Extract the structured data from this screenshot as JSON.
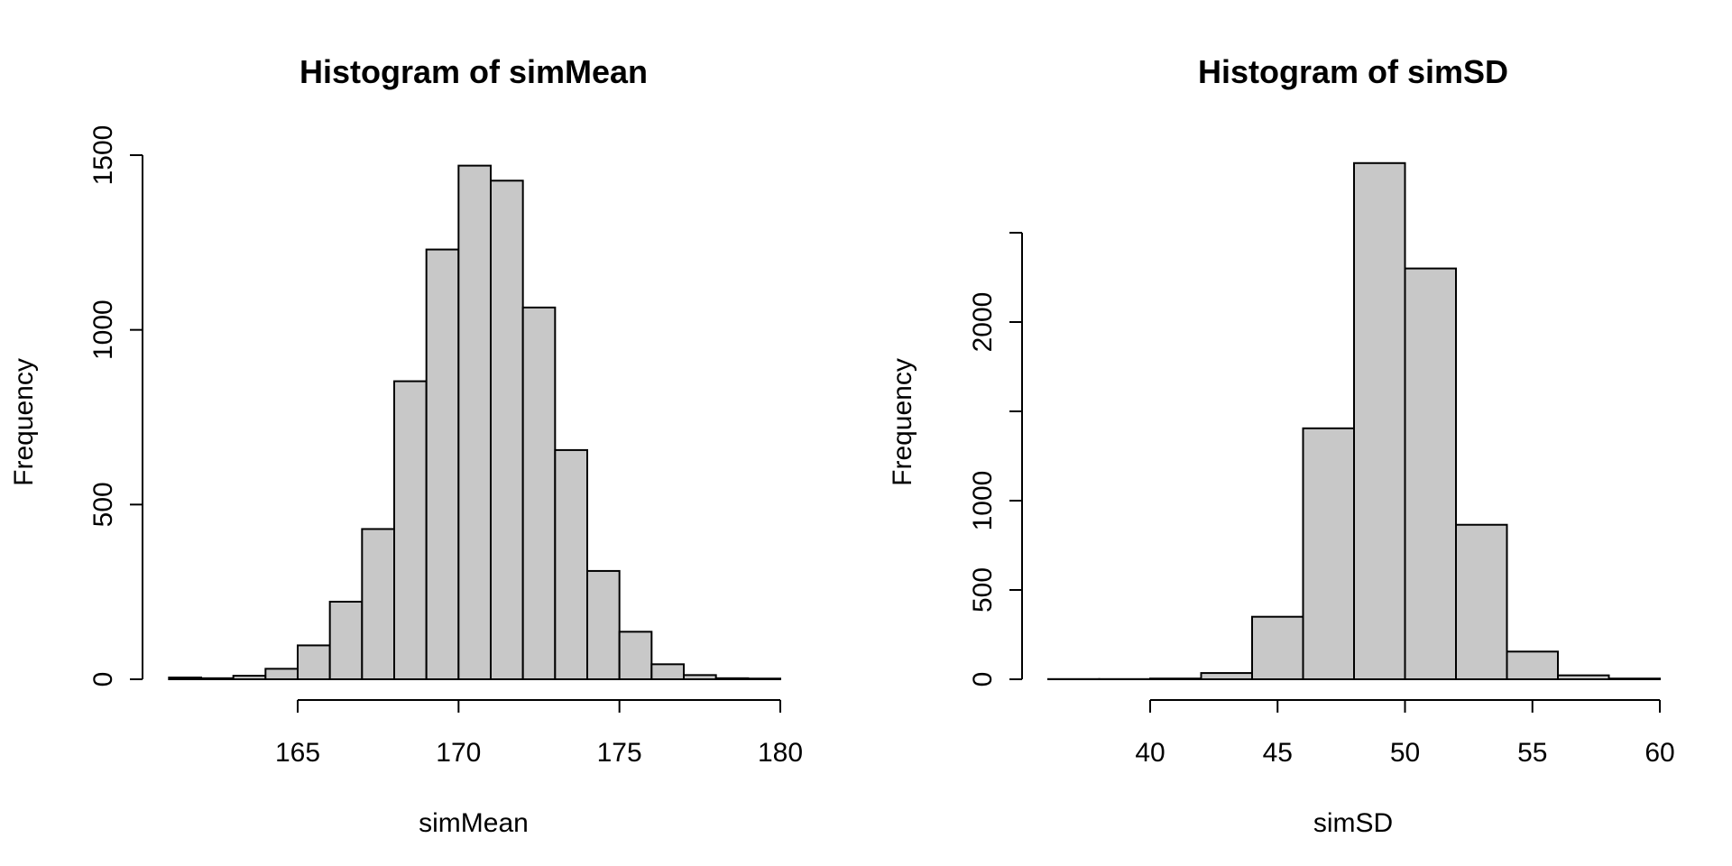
{
  "chart_data": [
    {
      "type": "bar",
      "title": "Histogram of simMean",
      "xlabel": "simMean",
      "ylabel": "Frequency",
      "bin_edges": [
        161,
        162,
        163,
        164,
        165,
        166,
        167,
        168,
        169,
        170,
        171,
        172,
        173,
        174,
        175,
        176,
        177,
        178,
        179,
        180
      ],
      "values": [
        5,
        3,
        10,
        30,
        97,
        222,
        430,
        853,
        1230,
        1470,
        1427,
        1064,
        656,
        310,
        136,
        43,
        12,
        3,
        2
      ],
      "xlim": [
        161,
        180
      ],
      "ylim": [
        0,
        1500
      ],
      "x_ticks": [
        165,
        170,
        175,
        180
      ],
      "y_ticks": [
        0,
        500,
        1000,
        1500
      ],
      "x_tick_labels": [
        "165",
        "170",
        "175",
        "180"
      ],
      "y_tick_labels": [
        "0",
        "500",
        "1000",
        "1500"
      ],
      "grid": false,
      "fill_color": "#c8c8c8"
    },
    {
      "type": "bar",
      "title": "Histogram of simSD",
      "xlabel": "simSD",
      "ylabel": "Frequency",
      "bin_edges": [
        36,
        38,
        40,
        42,
        44,
        46,
        48,
        50,
        52,
        54,
        56,
        58,
        60
      ],
      "values": [
        1,
        1,
        4,
        35,
        350,
        1405,
        2890,
        2300,
        865,
        155,
        22,
        4
      ],
      "xlim": [
        40,
        60
      ],
      "ylim": [
        0,
        2500
      ],
      "x_ticks": [
        40,
        45,
        50,
        55,
        60
      ],
      "y_ticks": [
        0,
        500,
        1000,
        1500,
        2000,
        2500
      ],
      "x_tick_labels": [
        "40",
        "45",
        "50",
        "55",
        "60"
      ],
      "y_tick_labels": [
        "0",
        "500",
        "1000",
        "",
        "2000",
        ""
      ],
      "grid": false,
      "fill_color": "#c8c8c8"
    }
  ]
}
